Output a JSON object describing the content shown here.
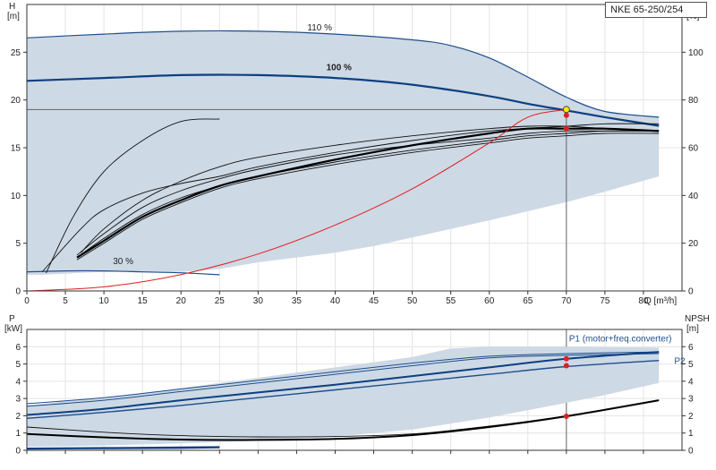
{
  "model": "NKE 65-250/254",
  "chart_data": [
    {
      "type": "line",
      "name": "performance",
      "x_axis": {
        "unit_label": "Q [m³/h]",
        "min": 0,
        "max": 85,
        "ticks": [
          0,
          5,
          10,
          15,
          20,
          25,
          30,
          35,
          40,
          45,
          50,
          55,
          60,
          65,
          70,
          75,
          80
        ],
        "tick_labels": [
          "0",
          "5",
          "10",
          "15",
          "20",
          "25",
          "30",
          "35",
          "40",
          "45",
          "50",
          "55",
          "60",
          "65",
          "70",
          "75",
          "80"
        ]
      },
      "y_left": {
        "title": "H",
        "unit": "[m]",
        "min": 0,
        "max": 30,
        "ticks": [
          0,
          5,
          10,
          15,
          20,
          25
        ],
        "tick_labels": [
          "0",
          "5",
          "10",
          "15",
          "20",
          "25"
        ]
      },
      "y_right": {
        "title": "eta",
        "unit": "[%]",
        "min": 0,
        "max": 120,
        "ticks": [
          0,
          20,
          40,
          60,
          80,
          100
        ],
        "tick_labels": [
          "0",
          "20",
          "40",
          "60",
          "80",
          "100"
        ]
      },
      "grid": true,
      "speed_labels": [
        {
          "text": "110 %",
          "x": 38,
          "y": 27.3
        },
        {
          "text": "100 %",
          "x": 40.5,
          "y": 23.1
        },
        {
          "text": "30 %",
          "x": 12.5,
          "y": 2.8
        }
      ],
      "envelope": [
        [
          0,
          26.5
        ],
        [
          10,
          26.9
        ],
        [
          20,
          27.2
        ],
        [
          30,
          27.2
        ],
        [
          40,
          26.9
        ],
        [
          50,
          26.3
        ],
        [
          55,
          25.7
        ],
        [
          60,
          24.4
        ],
        [
          65,
          22.4
        ],
        [
          70,
          20.3
        ],
        [
          75,
          18.8
        ],
        [
          82,
          18.2
        ],
        [
          82,
          12
        ],
        [
          75,
          10.4
        ],
        [
          70,
          9.3
        ],
        [
          60,
          7.4
        ],
        [
          50,
          5.6
        ],
        [
          45,
          4.7
        ],
        [
          40,
          4.0
        ],
        [
          30,
          3.0
        ],
        [
          25,
          2.3
        ],
        [
          20,
          2.0
        ],
        [
          10,
          2.0
        ],
        [
          2,
          1.7
        ],
        [
          0,
          1.7
        ]
      ],
      "extended_zone": [
        [
          0,
          1.7
        ],
        [
          3,
          1.7
        ],
        [
          5,
          9.5
        ],
        [
          7,
          22.2
        ],
        [
          9,
          22.3
        ],
        [
          10,
          22.5
        ],
        [
          0,
          22.0
        ]
      ],
      "h_100": [
        [
          0,
          22.0
        ],
        [
          10,
          22.3
        ],
        [
          20,
          22.6
        ],
        [
          30,
          22.6
        ],
        [
          40,
          22.3
        ],
        [
          50,
          21.6
        ],
        [
          60,
          20.4
        ],
        [
          65,
          19.6
        ],
        [
          70,
          18.9
        ],
        [
          75,
          18.2
        ],
        [
          82,
          17.3
        ]
      ],
      "h_110": [
        [
          0,
          26.5
        ],
        [
          10,
          26.9
        ],
        [
          20,
          27.2
        ],
        [
          30,
          27.2
        ],
        [
          40,
          26.9
        ],
        [
          50,
          26.3
        ],
        [
          55,
          25.7
        ],
        [
          60,
          24.4
        ],
        [
          65,
          22.4
        ],
        [
          70,
          20.3
        ],
        [
          75,
          18.8
        ],
        [
          82,
          18.2
        ]
      ],
      "h_30": [
        [
          0,
          2.0
        ],
        [
          5,
          2.1
        ],
        [
          10,
          2.1
        ],
        [
          15,
          2.0
        ],
        [
          20,
          1.9
        ],
        [
          25,
          1.7
        ]
      ],
      "eta_curves": [
        [
          [
            2.5,
            7.5
          ],
          [
            6,
            31
          ],
          [
            10,
            50
          ],
          [
            15,
            63
          ],
          [
            20,
            71
          ],
          [
            25,
            72
          ]
        ],
        [
          [
            7,
            16
          ],
          [
            10,
            26
          ],
          [
            15,
            38
          ],
          [
            20,
            46
          ],
          [
            25,
            52
          ],
          [
            30,
            56
          ],
          [
            40,
            61
          ],
          [
            50,
            65
          ],
          [
            60,
            68
          ],
          [
            65,
            69
          ],
          [
            70,
            69
          ],
          [
            75,
            68
          ],
          [
            82,
            67
          ]
        ],
        [
          [
            6.5,
            15
          ],
          [
            10,
            24
          ],
          [
            15,
            35
          ],
          [
            20,
            42
          ],
          [
            25,
            47
          ],
          [
            30,
            51
          ],
          [
            40,
            57
          ],
          [
            50,
            61
          ],
          [
            60,
            64
          ],
          [
            65,
            66
          ],
          [
            70,
            67
          ],
          [
            75,
            67
          ],
          [
            82,
            67
          ]
        ],
        [
          [
            6.5,
            14
          ],
          [
            10,
            22
          ],
          [
            15,
            32
          ],
          [
            20,
            39
          ],
          [
            25,
            44
          ],
          [
            30,
            48
          ],
          [
            40,
            54
          ],
          [
            50,
            59
          ],
          [
            60,
            63
          ],
          [
            65,
            65
          ],
          [
            70,
            66
          ],
          [
            75,
            67
          ],
          [
            82,
            67
          ]
        ],
        [
          [
            2,
            8
          ],
          [
            7,
            26
          ],
          [
            10,
            34
          ],
          [
            15,
            41
          ],
          [
            20,
            45
          ],
          [
            25,
            48
          ],
          [
            30,
            52
          ],
          [
            40,
            58
          ],
          [
            50,
            63
          ],
          [
            60,
            67
          ],
          [
            70,
            69
          ],
          [
            75,
            70
          ],
          [
            82,
            70
          ]
        ],
        [
          [
            6.5,
            13
          ],
          [
            10,
            20
          ],
          [
            15,
            30
          ],
          [
            20,
            37
          ],
          [
            25,
            43
          ],
          [
            30,
            47
          ],
          [
            40,
            53
          ],
          [
            50,
            58
          ],
          [
            60,
            62
          ],
          [
            65,
            64
          ],
          [
            70,
            65
          ],
          [
            75,
            66
          ],
          [
            82,
            66
          ]
        ]
      ],
      "eta_main": [
        [
          6.5,
          14
        ],
        [
          10,
          21
        ],
        [
          15,
          31
        ],
        [
          20,
          38
        ],
        [
          25,
          44
        ],
        [
          30,
          48
        ],
        [
          40,
          55
        ],
        [
          50,
          61
        ],
        [
          60,
          66
        ],
        [
          65,
          68
        ],
        [
          70,
          68
        ],
        [
          75,
          68
        ],
        [
          82,
          67
        ]
      ],
      "system_curve": [
        [
          0,
          0
        ],
        [
          10,
          0.43
        ],
        [
          20,
          1.72
        ],
        [
          30,
          3.87
        ],
        [
          40,
          6.9
        ],
        [
          50,
          10.7
        ],
        [
          60,
          15.5
        ],
        [
          65,
          18.2
        ],
        [
          70,
          19.0
        ]
      ],
      "duty_point": {
        "q": 70,
        "h": 19.0,
        "h2": 18.4,
        "eta": 68
      },
      "duty_hline": 19.0
    },
    {
      "type": "line",
      "name": "power_npsh",
      "x_axis": {
        "min": 0,
        "max": 85
      },
      "y_left": {
        "title": "P",
        "unit": "[kW]",
        "min": 0,
        "max": 7,
        "ticks": [
          0,
          1,
          2,
          3,
          4,
          5,
          6
        ],
        "tick_labels": [
          "0",
          "1",
          "2",
          "3",
          "4",
          "5",
          "6"
        ]
      },
      "y_right": {
        "title": "NPSH",
        "unit": "[m]",
        "min": 0,
        "max": 7,
        "ticks": [
          0,
          1,
          2,
          3,
          4,
          5,
          6
        ],
        "tick_labels": [
          "0",
          "1",
          "2",
          "3",
          "4",
          "5",
          "6"
        ]
      },
      "grid": true,
      "series_labels": [
        {
          "text": "P1 (motor+freq.converter)",
          "x": 77,
          "y": 6.3
        },
        {
          "text": "P2",
          "x": 84,
          "y": 5.0
        }
      ],
      "envelope": [
        [
          0,
          2.6
        ],
        [
          10,
          3.05
        ],
        [
          20,
          3.6
        ],
        [
          30,
          4.2
        ],
        [
          40,
          4.8
        ],
        [
          50,
          5.4
        ],
        [
          55,
          5.9
        ],
        [
          60,
          6.0
        ],
        [
          70,
          6.0
        ],
        [
          82,
          5.95
        ],
        [
          82,
          3.9
        ],
        [
          75,
          3.2
        ],
        [
          70,
          2.75
        ],
        [
          60,
          1.9
        ],
        [
          50,
          1.2
        ],
        [
          40,
          0.8
        ],
        [
          30,
          0.55
        ],
        [
          20,
          0.4
        ],
        [
          10,
          0.28
        ],
        [
          0,
          0.2
        ]
      ],
      "extended_zone": [
        [
          0,
          0.2
        ],
        [
          10,
          0.28
        ],
        [
          10,
          2.9
        ],
        [
          0,
          2.5
        ]
      ],
      "p1": [
        [
          0,
          2.05
        ],
        [
          10,
          2.4
        ],
        [
          20,
          2.9
        ],
        [
          30,
          3.35
        ],
        [
          40,
          3.8
        ],
        [
          50,
          4.3
        ],
        [
          60,
          4.8
        ],
        [
          70,
          5.3
        ],
        [
          82,
          5.7
        ]
      ],
      "p2": [
        [
          0,
          1.85
        ],
        [
          10,
          2.2
        ],
        [
          20,
          2.6
        ],
        [
          30,
          3.05
        ],
        [
          40,
          3.5
        ],
        [
          50,
          3.95
        ],
        [
          60,
          4.4
        ],
        [
          70,
          4.85
        ],
        [
          82,
          5.2
        ]
      ],
      "p_thin": [
        [
          [
            0,
            2.7
          ],
          [
            10,
            3.05
          ],
          [
            20,
            3.55
          ],
          [
            30,
            4.05
          ],
          [
            40,
            4.55
          ],
          [
            50,
            5.05
          ],
          [
            60,
            5.45
          ],
          [
            70,
            5.6
          ],
          [
            82,
            5.7
          ]
        ],
        [
          [
            0,
            2.55
          ],
          [
            10,
            2.9
          ],
          [
            20,
            3.4
          ],
          [
            30,
            3.9
          ],
          [
            40,
            4.4
          ],
          [
            50,
            4.9
          ],
          [
            60,
            5.35
          ],
          [
            70,
            5.5
          ],
          [
            82,
            5.6
          ]
        ]
      ],
      "npsh": [
        [
          0,
          0.95
        ],
        [
          10,
          0.75
        ],
        [
          20,
          0.62
        ],
        [
          30,
          0.6
        ],
        [
          40,
          0.66
        ],
        [
          50,
          0.88
        ],
        [
          60,
          1.35
        ],
        [
          70,
          1.97
        ],
        [
          82,
          2.9
        ]
      ],
      "npsh_thin": [
        [
          0,
          1.35
        ],
        [
          10,
          1.05
        ],
        [
          20,
          0.85
        ],
        [
          30,
          0.78
        ],
        [
          40,
          0.8
        ],
        [
          50,
          0.95
        ],
        [
          60,
          1.4
        ],
        [
          70,
          2.0
        ],
        [
          82,
          2.9
        ]
      ],
      "low_p": [
        [
          [
            0,
            0.12
          ],
          [
            10,
            0.15
          ],
          [
            20,
            0.18
          ],
          [
            25,
            0.2
          ]
        ],
        [
          [
            0,
            0.08
          ],
          [
            10,
            0.1
          ],
          [
            20,
            0.12
          ],
          [
            25,
            0.15
          ]
        ]
      ],
      "duty_points": [
        {
          "q": 70,
          "p": 5.3
        },
        {
          "q": 70,
          "p": 4.9
        },
        {
          "q": 70,
          "p": 1.97
        }
      ]
    }
  ]
}
